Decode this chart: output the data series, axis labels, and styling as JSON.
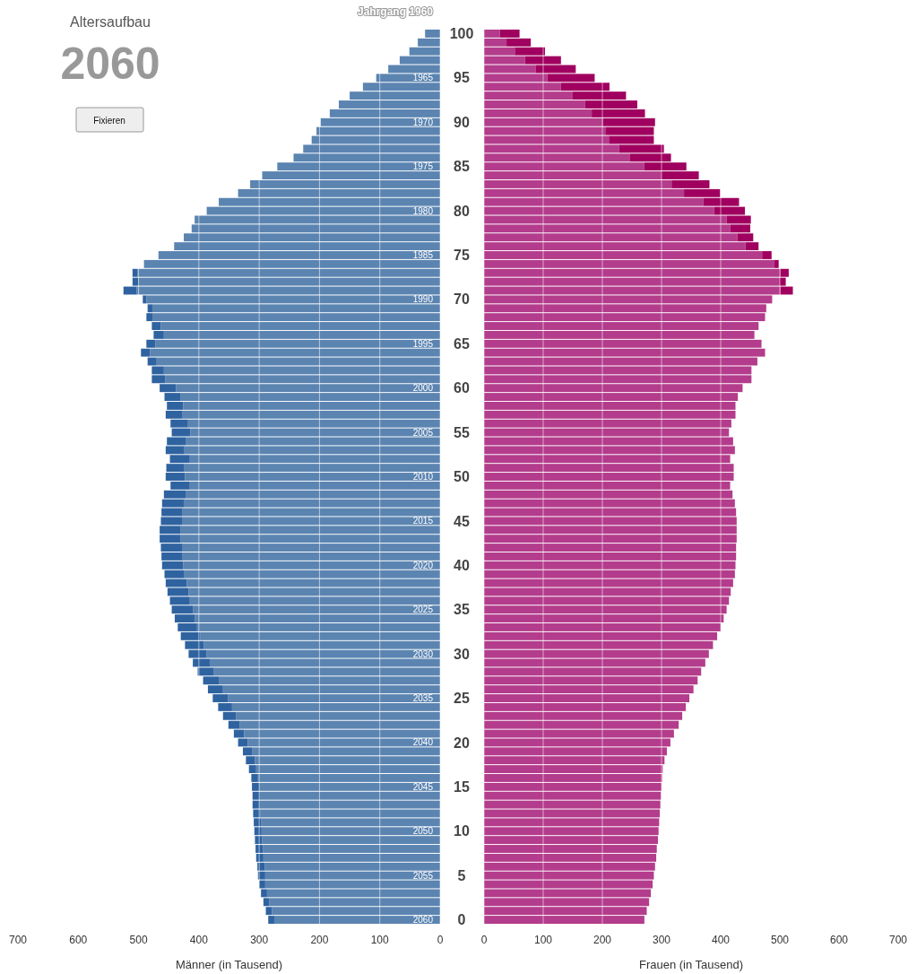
{
  "chart_data": [
    {
      "type": "bar",
      "orientation": "horizontal",
      "stacked": true,
      "grid": "x",
      "title": "Altersaufbau",
      "subtitle": "2060",
      "annotations": [
        "Fixieren",
        "Jahrgang 1960"
      ],
      "xlabel": "Männer (in Tausend)",
      "xlim": [
        700,
        0
      ],
      "xticks": [
        700,
        600,
        500,
        400,
        300,
        200,
        100,
        0
      ],
      "categories": [
        null,
        null,
        null,
        null,
        null,
        "1965",
        null,
        null,
        null,
        null,
        "1970",
        null,
        null,
        null,
        null,
        "1975",
        null,
        null,
        null,
        null,
        "1980",
        null,
        null,
        null,
        null,
        "1985",
        null,
        null,
        null,
        null,
        "1990",
        null,
        null,
        null,
        null,
        "1995",
        null,
        null,
        null,
        null,
        "2000",
        null,
        null,
        null,
        null,
        "2005",
        null,
        null,
        null,
        null,
        "2010",
        null,
        null,
        null,
        null,
        "2015",
        null,
        null,
        null,
        null,
        "2020",
        null,
        null,
        null,
        null,
        "2025",
        null,
        null,
        null,
        null,
        "2030",
        null,
        null,
        null,
        null,
        "2035",
        null,
        null,
        null,
        null,
        "2040",
        null,
        null,
        null,
        null,
        "2045",
        null,
        null,
        null,
        null,
        "2050",
        null,
        null,
        null,
        null,
        "2055",
        null,
        null,
        null,
        null,
        "2060"
      ],
      "series": [
        {
          "color": "#5b84b1",
          "values": [
            25,
            37,
            51,
            67,
            86,
            106,
            128,
            150,
            168,
            183,
            198,
            205,
            213,
            227,
            243,
            270,
            295,
            315,
            335,
            367,
            387,
            407,
            412,
            425,
            441,
            467,
            491,
            502,
            500,
            503,
            487,
            477,
            477,
            463,
            458,
            472,
            481,
            470,
            458,
            456,
            438,
            430,
            426,
            427,
            418,
            414,
            422,
            425,
            415,
            424,
            423,
            415,
            422,
            425,
            427,
            428,
            430,
            430,
            428,
            427,
            426,
            425,
            420,
            417,
            415,
            410,
            407,
            403,
            398,
            392,
            387,
            382,
            375,
            367,
            360,
            352,
            345,
            338,
            332,
            325,
            319,
            312,
            307,
            305,
            302,
            300,
            299,
            299,
            298,
            297,
            296,
            295,
            294,
            293,
            291,
            290,
            290,
            287,
            283,
            279,
            275
          ]
        },
        {
          "color": "#2f63a0",
          "values": [
            0,
            0,
            0,
            0,
            0,
            0,
            0,
            0,
            0,
            0,
            0,
            0,
            0,
            0,
            0,
            0,
            0,
            0,
            0,
            0,
            0,
            0,
            0,
            0,
            0,
            0,
            0,
            8,
            10,
            22,
            6,
            8,
            10,
            15,
            17,
            15,
            15,
            15,
            20,
            22,
            27,
            27,
            27,
            28,
            29,
            31,
            31,
            30,
            33,
            30,
            32,
            32,
            36,
            36,
            35,
            35,
            35,
            35,
            35,
            35,
            35,
            32,
            35,
            35,
            33,
            35,
            33,
            32,
            32,
            31,
            30,
            28,
            27,
            26,
            25,
            25,
            23,
            22,
            19,
            17,
            16,
            15,
            15,
            12,
            11,
            12,
            12,
            12,
            12,
            12,
            12,
            12,
            12,
            12,
            12,
            12,
            10,
            10,
            10,
            10,
            10
          ]
        }
      ]
    },
    {
      "type": "bar",
      "orientation": "horizontal",
      "stacked": true,
      "grid": "x",
      "xlabel": "Frauen (in Tausend)",
      "xlim": [
        0,
        700
      ],
      "xticks": [
        0,
        100,
        200,
        300,
        400,
        500,
        600,
        700
      ],
      "categories": [
        "100",
        null,
        null,
        null,
        null,
        "95",
        null,
        null,
        null,
        null,
        "90",
        null,
        null,
        null,
        null,
        "85",
        null,
        null,
        null,
        null,
        "80",
        null,
        null,
        null,
        null,
        "75",
        null,
        null,
        null,
        null,
        "70",
        null,
        null,
        null,
        null,
        "65",
        null,
        null,
        null,
        null,
        "60",
        null,
        null,
        null,
        null,
        "55",
        null,
        null,
        null,
        null,
        "50",
        null,
        null,
        null,
        null,
        "45",
        null,
        null,
        null,
        null,
        "40",
        null,
        null,
        null,
        null,
        "35",
        null,
        null,
        null,
        null,
        "30",
        null,
        null,
        null,
        null,
        "25",
        null,
        null,
        null,
        null,
        "20",
        null,
        null,
        null,
        null,
        "15",
        null,
        null,
        null,
        null,
        "10",
        null,
        null,
        null,
        null,
        "5",
        null,
        null,
        null,
        null,
        "0"
      ],
      "series": [
        {
          "color": "#b43c8c",
          "values": [
            27,
            38,
            52,
            69,
            87,
            107,
            130,
            150,
            171,
            182,
            201,
            205,
            211,
            228,
            246,
            271,
            300,
            317,
            338,
            371,
            389,
            410,
            416,
            428,
            442,
            470,
            491,
            501,
            500,
            501,
            487,
            477,
            475,
            464,
            457,
            469,
            475,
            462,
            452,
            452,
            437,
            429,
            425,
            425,
            418,
            414,
            421,
            424,
            416,
            422,
            422,
            416,
            420,
            424,
            426,
            427,
            427,
            427,
            426,
            426,
            425,
            424,
            421,
            417,
            414,
            410,
            405,
            400,
            394,
            387,
            380,
            374,
            367,
            361,
            354,
            347,
            341,
            335,
            329,
            321,
            315,
            309,
            305,
            302,
            301,
            300,
            299,
            298,
            297,
            296,
            295,
            294,
            292,
            291,
            289,
            287,
            285,
            282,
            279,
            275,
            271
          ]
        },
        {
          "color": "#a0005f",
          "values": [
            33,
            41,
            51,
            61,
            68,
            80,
            82,
            90,
            88,
            90,
            88,
            82,
            76,
            76,
            70,
            71,
            63,
            64,
            61,
            60,
            52,
            41,
            34,
            27,
            22,
            16,
            7,
            14,
            10,
            21,
            0,
            0,
            0,
            0,
            0,
            0,
            0,
            0,
            0,
            0,
            0,
            0,
            0,
            0,
            0,
            0,
            0,
            0,
            0,
            0,
            0,
            0,
            0,
            0,
            0,
            0,
            0,
            0,
            0,
            0,
            0,
            0,
            0,
            0,
            0,
            0,
            0,
            0,
            0,
            0,
            0,
            0,
            0,
            0,
            0,
            0,
            0,
            0,
            0,
            0,
            0,
            0,
            0,
            0,
            0,
            0,
            0,
            0,
            0,
            0,
            0,
            0,
            0,
            0,
            0,
            0,
            0,
            0,
            0,
            0,
            0
          ]
        }
      ]
    }
  ]
}
